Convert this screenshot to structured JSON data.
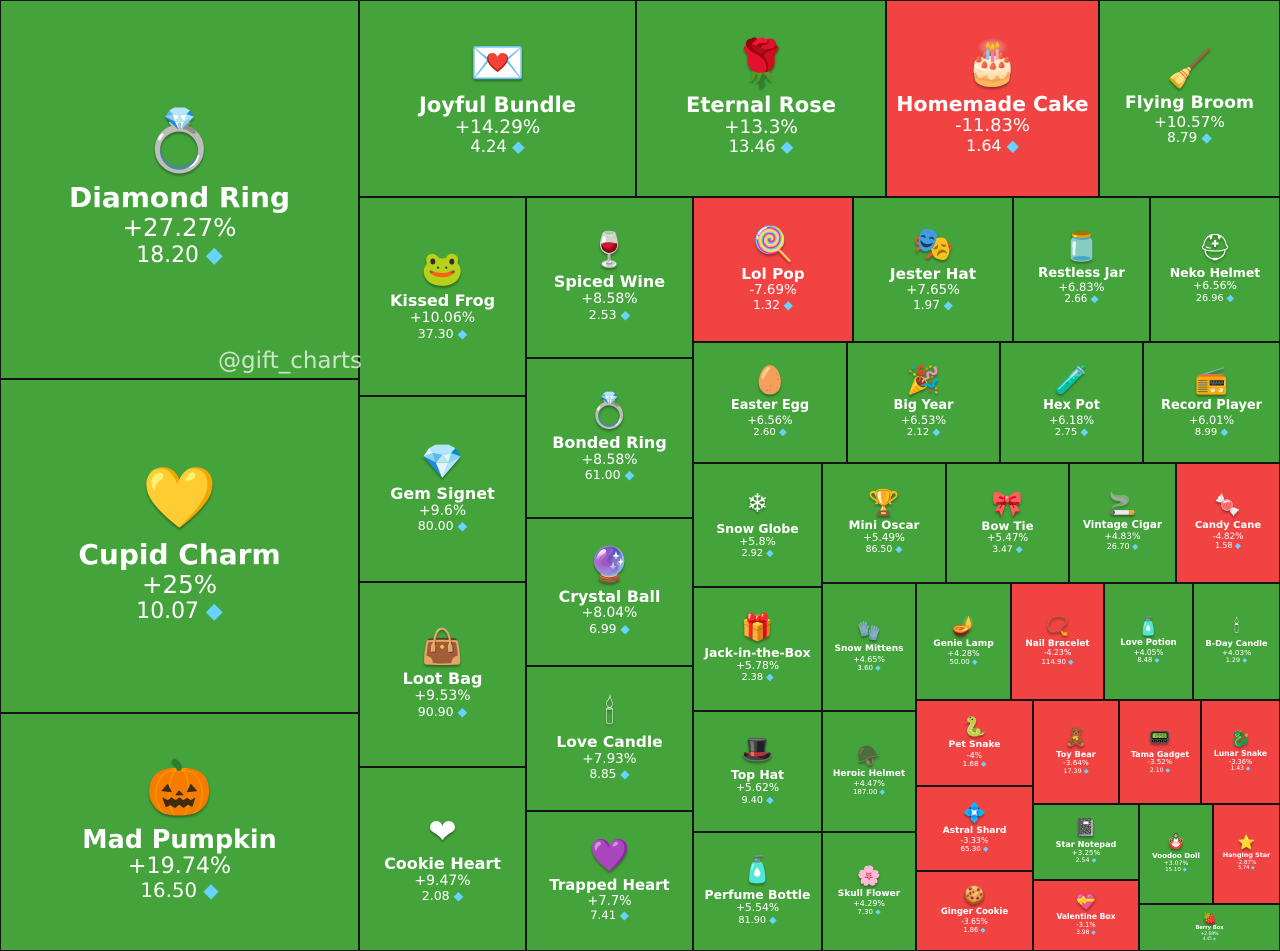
{
  "watermark": "@gift_charts",
  "colors": {
    "up": "#44a33a",
    "down": "#f24343",
    "border": "#141414",
    "gem": "#67d4ff"
  },
  "chart_data": {
    "type": "treemap",
    "title": "",
    "currency_icon": "diamond-icon",
    "items": [
      {
        "name": "Diamond Ring",
        "change": "+27.27%",
        "price": "18.20",
        "icon": "ring-box-icon",
        "glyph": "💍"
      },
      {
        "name": "Cupid Charm",
        "change": "+25%",
        "price": "10.07",
        "icon": "heart-lock-icon",
        "glyph": "💛"
      },
      {
        "name": "Mad Pumpkin",
        "change": "+19.74%",
        "price": "16.50",
        "icon": "pumpkin-icon",
        "glyph": "🎃"
      },
      {
        "name": "Joyful Bundle",
        "change": "+14.29%",
        "price": "4.24",
        "icon": "love-bundle-icon",
        "glyph": "💌"
      },
      {
        "name": "Eternal Rose",
        "change": "+13.3%",
        "price": "13.46",
        "icon": "rose-dome-icon",
        "glyph": "🌹"
      },
      {
        "name": "Homemade Cake",
        "change": "-11.83%",
        "price": "1.64",
        "icon": "cake-icon",
        "glyph": "🎂"
      },
      {
        "name": "Flying Broom",
        "change": "+10.57%",
        "price": "8.79",
        "icon": "broom-icon",
        "glyph": "🧹"
      },
      {
        "name": "Kissed Frog",
        "change": "+10.06%",
        "price": "37.30",
        "icon": "frog-icon",
        "glyph": "🐸"
      },
      {
        "name": "Spiced Wine",
        "change": "+8.58%",
        "price": "2.53",
        "icon": "wine-icon",
        "glyph": "🍷"
      },
      {
        "name": "Lol Pop",
        "change": "-7.69%",
        "price": "1.32",
        "icon": "lollipop-icon",
        "glyph": "🍭"
      },
      {
        "name": "Jester Hat",
        "change": "+7.65%",
        "price": "1.97",
        "icon": "jester-hat-icon",
        "glyph": "🎭"
      },
      {
        "name": "Restless Jar",
        "change": "+6.83%",
        "price": "2.66",
        "icon": "jar-icon",
        "glyph": "🫙"
      },
      {
        "name": "Neko Helmet",
        "change": "+6.56%",
        "price": "26.96",
        "icon": "helmet-icon",
        "glyph": "⛑"
      },
      {
        "name": "Gem Signet",
        "change": "+9.6%",
        "price": "80.00",
        "icon": "signet-icon",
        "glyph": "💎"
      },
      {
        "name": "Bonded Ring",
        "change": "+8.58%",
        "price": "61.00",
        "icon": "bonded-ring-icon",
        "glyph": "💍"
      },
      {
        "name": "Easter Egg",
        "change": "+6.56%",
        "price": "2.60",
        "icon": "easter-egg-icon",
        "glyph": "🥚"
      },
      {
        "name": "Big Year",
        "change": "+6.53%",
        "price": "2.12",
        "icon": "fireworks-icon",
        "glyph": "🎉"
      },
      {
        "name": "Hex Pot",
        "change": "+6.18%",
        "price": "2.75",
        "icon": "cauldron-icon",
        "glyph": "🧪"
      },
      {
        "name": "Record Player",
        "change": "+6.01%",
        "price": "8.99",
        "icon": "record-player-icon",
        "glyph": "📻"
      },
      {
        "name": "Crystal Ball",
        "change": "+8.04%",
        "price": "6.99",
        "icon": "crystal-ball-icon",
        "glyph": "🔮"
      },
      {
        "name": "Snow Globe",
        "change": "+5.8%",
        "price": "2.92",
        "icon": "snow-globe-icon",
        "glyph": "❄"
      },
      {
        "name": "Mini Oscar",
        "change": "+5.49%",
        "price": "86.50",
        "icon": "trophy-icon",
        "glyph": "🏆"
      },
      {
        "name": "Bow Tie",
        "change": "+5.47%",
        "price": "3.47",
        "icon": "bow-tie-icon",
        "glyph": "🎀"
      },
      {
        "name": "Vintage Cigar",
        "change": "+4.83%",
        "price": "26.70",
        "icon": "cigar-icon",
        "glyph": "🚬"
      },
      {
        "name": "Candy Cane",
        "change": "-4.82%",
        "price": "1.58",
        "icon": "candy-cane-icon",
        "glyph": "🍬"
      },
      {
        "name": "Loot Bag",
        "change": "+9.53%",
        "price": "90.90",
        "icon": "bag-icon",
        "glyph": "👜"
      },
      {
        "name": "Jack-in-the-Box",
        "change": "+5.78%",
        "price": "2.38",
        "icon": "jack-in-box-icon",
        "glyph": "🎁"
      },
      {
        "name": "Snow Mittens",
        "change": "+4.65%",
        "price": "3.60",
        "icon": "mittens-icon",
        "glyph": "🧤"
      },
      {
        "name": "Genie Lamp",
        "change": "+4.28%",
        "price": "50.00",
        "icon": "lamp-icon",
        "glyph": "🪔"
      },
      {
        "name": "Nail Bracelet",
        "change": "-4.23%",
        "price": "114.90",
        "icon": "bracelet-icon",
        "glyph": "📿"
      },
      {
        "name": "Love Potion",
        "change": "+4.05%",
        "price": "8.48",
        "icon": "potion-icon",
        "glyph": "🧴"
      },
      {
        "name": "B-Day Candle",
        "change": "+4.03%",
        "price": "1.29",
        "icon": "candle-cake-icon",
        "glyph": "🕯"
      },
      {
        "name": "Love Candle",
        "change": "+7.93%",
        "price": "8.85",
        "icon": "love-candle-icon",
        "glyph": "🕯"
      },
      {
        "name": "Top Hat",
        "change": "+5.62%",
        "price": "9.40",
        "icon": "top-hat-icon",
        "glyph": "🎩"
      },
      {
        "name": "Heroic Helmet",
        "change": "+4.47%",
        "price": "187.00",
        "icon": "spartan-helmet-icon",
        "glyph": "🪖"
      },
      {
        "name": "Pet Snake",
        "change": "-4%",
        "price": "1.68",
        "icon": "snake-icon",
        "glyph": "🐍"
      },
      {
        "name": "Toy Bear",
        "change": "-3.64%",
        "price": "17.39",
        "icon": "teddy-bear-icon",
        "glyph": "🧸"
      },
      {
        "name": "Tama Gadget",
        "change": "-3.52%",
        "price": "2.10",
        "icon": "gadget-icon",
        "glyph": "📟"
      },
      {
        "name": "Lunar Snake",
        "change": "-3.36%",
        "price": "1.43",
        "icon": "lunar-snake-icon",
        "glyph": "🐉"
      },
      {
        "name": "Astral Shard",
        "change": "-3.33%",
        "price": "65.30",
        "icon": "shard-icon",
        "glyph": "💠"
      },
      {
        "name": "Star Notepad",
        "change": "+3.25%",
        "price": "2.54",
        "icon": "notepad-icon",
        "glyph": "📓"
      },
      {
        "name": "Voodoo Doll",
        "change": "+3.07%",
        "price": "15.10",
        "icon": "voodoo-doll-icon",
        "glyph": "🪆"
      },
      {
        "name": "Hanging Star",
        "change": "-2.87%",
        "price": "5.74",
        "icon": "star-icon",
        "glyph": "⭐"
      },
      {
        "name": "Cookie Heart",
        "change": "+9.47%",
        "price": "2.08",
        "icon": "cookie-heart-icon",
        "glyph": "❤"
      },
      {
        "name": "Trapped Heart",
        "change": "+7.7%",
        "price": "7.41",
        "icon": "trapped-heart-icon",
        "glyph": "💜"
      },
      {
        "name": "Perfume Bottle",
        "change": "+5.54%",
        "price": "81.90",
        "icon": "perfume-icon",
        "glyph": "🧴"
      },
      {
        "name": "Skull Flower",
        "change": "+4.29%",
        "price": "7.30",
        "icon": "skull-flower-icon",
        "glyph": "🌸"
      },
      {
        "name": "Ginger Cookie",
        "change": "-3.65%",
        "price": "1.86",
        "icon": "gingerbread-icon",
        "glyph": "🍪"
      },
      {
        "name": "Valentine Box",
        "change": "-3.1%",
        "price": "3.98",
        "icon": "valentine-box-icon",
        "glyph": "💝"
      },
      {
        "name": "Berry Box",
        "change": "+2.69%",
        "price": "4.45",
        "icon": "berry-box-icon",
        "glyph": "🍓"
      }
    ]
  }
}
